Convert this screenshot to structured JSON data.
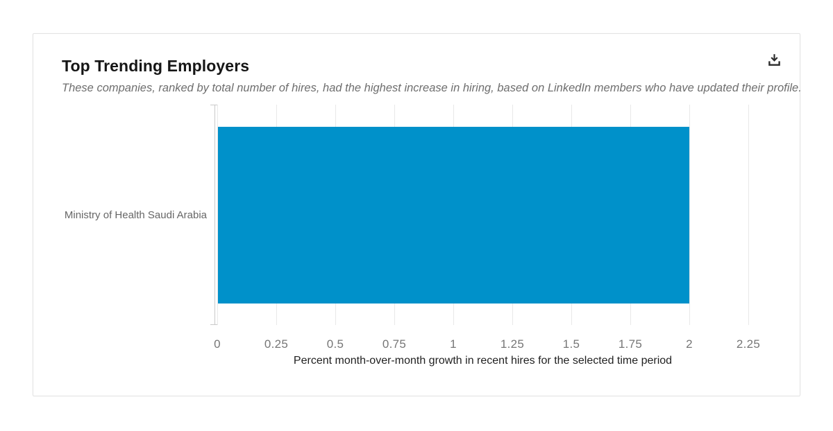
{
  "card": {
    "title": "Top Trending Employers",
    "subtitle": "These companies, ranked by total number of hires, had the highest increase in hiring, based on LinkedIn members who have updated their profile.",
    "actions": [
      {
        "icon": "download-icon"
      }
    ]
  },
  "chart_data": {
    "type": "bar",
    "orientation": "horizontal",
    "title": "Top Trending Employers",
    "categories": [
      "Ministry of Health Saudi Arabia"
    ],
    "values": [
      2
    ],
    "xlabel": "Percent month-over-month growth in recent hires for the selected time period",
    "ylabel": "",
    "xlim": [
      0,
      2.25
    ],
    "xticks": [
      0,
      0.25,
      0.5,
      0.75,
      1,
      1.25,
      1.5,
      1.75,
      2,
      2.25
    ],
    "xtick_labels": [
      "0",
      "0.25",
      "0.5",
      "0.75",
      "1",
      "1.25",
      "1.5",
      "1.75",
      "2",
      "2.25"
    ],
    "grid": true,
    "legend": false,
    "colors": {
      "bar": "#0091ca",
      "gridline": "#e8e8e8",
      "axis_line": "#c9c9c9",
      "tick_label": "#767676",
      "category_label": "#666666",
      "xlabel": "#1f1f1f"
    }
  }
}
